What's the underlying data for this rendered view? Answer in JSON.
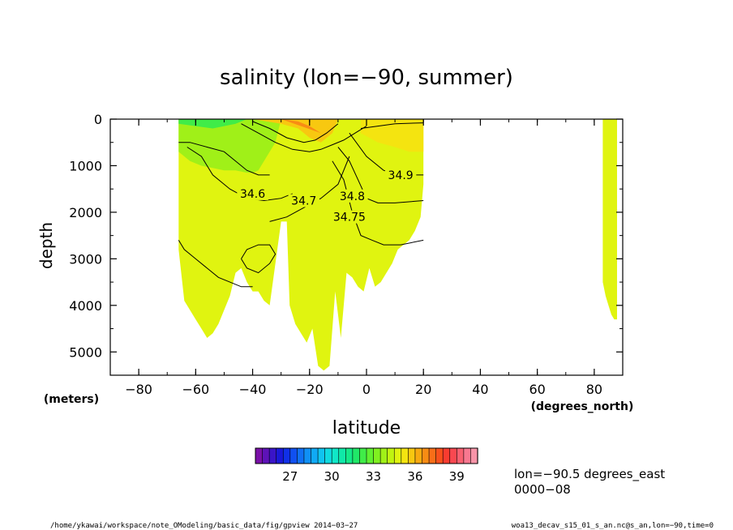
{
  "chart_data": {
    "type": "heatmap",
    "title": "salinity (lon=−90, summer)",
    "xlabel": "latitude",
    "x_units": "(degrees_north)",
    "ylabel": "depth",
    "y_units": "(meters)",
    "xlim": [
      -90,
      90
    ],
    "ylim": [
      5500,
      0
    ],
    "y_inverted": true,
    "x_ticks": [
      -80,
      -60,
      -40,
      -20,
      0,
      20,
      40,
      60,
      80
    ],
    "x_tick_labels": [
      "−80",
      "−60",
      "−40",
      "−20",
      "0",
      "20",
      "40",
      "60",
      "80"
    ],
    "y_ticks": [
      0,
      1000,
      2000,
      3000,
      4000,
      5000
    ],
    "y_tick_labels": [
      "0",
      "1000",
      "2000",
      "3000",
      "4000",
      "5000"
    ],
    "grid": false,
    "colorbar": {
      "min": 24.5,
      "max": 40.5,
      "n_colors": 32,
      "tick_values": [
        27,
        30,
        33,
        36,
        39
      ],
      "tick_labels": [
        "27",
        "30",
        "33",
        "36",
        "39"
      ],
      "placement": "bottom-center"
    },
    "background_value": 34.7,
    "regions": [
      {
        "name": "deep-water",
        "value": 34.7,
        "x": [
          -66,
          -64,
          -62,
          -60,
          -58,
          -56,
          -54,
          -52,
          -50,
          -48,
          -46,
          -44,
          -42,
          -40,
          -38,
          -36,
          -34,
          -30,
          -28,
          -27,
          -25,
          -23,
          -21,
          -19,
          -17,
          -15,
          -13,
          -11,
          -9,
          -7,
          -5,
          -3,
          -1,
          1,
          3,
          5,
          7,
          9,
          11,
          13,
          15,
          17,
          19,
          20,
          20,
          -66
        ],
        "y": [
          2800,
          3900,
          4100,
          4300,
          4500,
          4700,
          4600,
          4400,
          4100,
          3800,
          3300,
          3200,
          3500,
          3700,
          3700,
          3900,
          4000,
          2200,
          2200,
          4000,
          4400,
          4600,
          4800,
          4500,
          5300,
          5400,
          5300,
          3700,
          4700,
          3300,
          3400,
          3600,
          3700,
          3200,
          3600,
          3500,
          3300,
          3100,
          2800,
          2700,
          2600,
          2400,
          2100,
          1400,
          0,
          0
        ]
      },
      {
        "name": "arctic-shelf",
        "value": 34.5,
        "x": [
          83,
          84,
          85,
          86,
          87,
          88,
          88,
          83
        ],
        "y": [
          3500,
          3800,
          4000,
          4200,
          4300,
          4300,
          0,
          0
        ]
      },
      {
        "name": "surface-fresh-band",
        "value": 33.5,
        "x": [
          -66,
          -62,
          -58,
          -54,
          -50,
          -46,
          -42,
          -40,
          -38,
          -36,
          -34,
          -32,
          -30,
          -66
        ],
        "y": [
          700,
          900,
          1000,
          1050,
          1100,
          1100,
          1150,
          1150,
          1100,
          900,
          700,
          500,
          0,
          0
        ]
      },
      {
        "name": "antarctic-cold",
        "value": 32.0,
        "x": [
          -66,
          -60,
          -54,
          -50,
          -46,
          -42,
          -66
        ],
        "y": [
          100,
          150,
          200,
          150,
          100,
          0,
          0
        ]
      },
      {
        "name": "subtropical-high",
        "value": 35.5,
        "x": [
          -40,
          -30,
          -24,
          -20,
          -16,
          -12,
          -10,
          -40
        ],
        "y": [
          0,
          100,
          200,
          400,
          500,
          300,
          0,
          0
        ]
      },
      {
        "name": "subtropical-core",
        "value": 36.5,
        "x": [
          -30,
          -24,
          -20,
          -16,
          -30
        ],
        "y": [
          0,
          50,
          150,
          300,
          0
        ]
      },
      {
        "name": "north-surface",
        "value": 35.0,
        "x": [
          -2,
          4,
          10,
          15,
          20,
          20,
          -2
        ],
        "y": [
          300,
          500,
          600,
          700,
          700,
          0,
          0
        ]
      }
    ],
    "contours": [
      {
        "label": "34.6",
        "value": 34.6,
        "x": [
          -63,
          -58,
          -54,
          -48,
          -42,
          -36,
          -30,
          -26
        ],
        "y": [
          600,
          800,
          1200,
          1500,
          1700,
          1750,
          1700,
          1600
        ],
        "label_at": [
          -40,
          1600
        ]
      },
      {
        "label": "34.7",
        "value": 34.7,
        "x": [
          -34,
          -28,
          -22,
          -16,
          -10,
          -6
        ],
        "y": [
          2200,
          2100,
          1900,
          1700,
          1400,
          800
        ],
        "label_at": [
          -22,
          1750
        ]
      },
      {
        "label": "34.75",
        "value": 34.75,
        "x": [
          -12,
          -8,
          -5,
          -2,
          2,
          6,
          12,
          20
        ],
        "y": [
          900,
          1300,
          2000,
          2500,
          2600,
          2700,
          2700,
          2600
        ],
        "label_at": [
          -6,
          2100
        ]
      },
      {
        "label": "34.8",
        "value": 34.8,
        "x": [
          -10,
          -6,
          -3,
          0,
          4,
          10,
          20
        ],
        "y": [
          600,
          900,
          1300,
          1700,
          1800,
          1800,
          1750
        ],
        "label_at": [
          -5,
          1650
        ]
      },
      {
        "label": "34.9",
        "value": 34.9,
        "x": [
          -6,
          0,
          6,
          12,
          20
        ],
        "y": [
          300,
          800,
          1100,
          1200,
          1200
        ],
        "label_at": [
          12,
          1200
        ]
      },
      {
        "label": "",
        "value": 34.65,
        "x": [
          -66,
          -64,
          -60,
          -56,
          -52,
          -48,
          -44,
          -40
        ],
        "y": [
          2600,
          2800,
          3000,
          3200,
          3400,
          3500,
          3600,
          3600
        ],
        "label_at": null
      },
      {
        "label": "",
        "value": 34.72,
        "x": [
          -44,
          -42,
          -38,
          -34,
          -32,
          -34,
          -38,
          -42,
          -44
        ],
        "y": [
          3000,
          2800,
          2700,
          2700,
          2900,
          3100,
          3300,
          3200,
          3000
        ],
        "label_at": null
      },
      {
        "label": "",
        "value": 34.5,
        "x": [
          -66,
          -62,
          -56,
          -50,
          -46,
          -42,
          -38,
          -34
        ],
        "y": [
          500,
          500,
          600,
          700,
          900,
          1100,
          1200,
          1200
        ],
        "label_at": null
      },
      {
        "label": "",
        "value": 35.0,
        "x": [
          -44,
          -38,
          -32,
          -26,
          -20,
          -16,
          -12,
          -8,
          -4,
          0
        ],
        "y": [
          100,
          300,
          500,
          650,
          700,
          650,
          550,
          450,
          300,
          150
        ],
        "label_at": null
      },
      {
        "label": "",
        "value": 35.5,
        "x": [
          -40,
          -34,
          -28,
          -22,
          -18,
          -14,
          -10
        ],
        "y": [
          50,
          200,
          400,
          500,
          450,
          300,
          100
        ],
        "label_at": null
      },
      {
        "label": "",
        "value": 35.0,
        "x": [
          -2,
          4,
          10,
          20
        ],
        "y": [
          200,
          150,
          100,
          80
        ],
        "label_at": null
      }
    ]
  },
  "annotations": {
    "lon_text": "lon=−90.5 degrees_east",
    "time_text": "0000−08",
    "footer_left": "/home/ykawai/workspace/note_OModeling/basic_data/fig/gpview  2014−03−27",
    "footer_right": "woa13_decav_s15_01_s_an.nc@s_an,lon=−90,time=0"
  }
}
